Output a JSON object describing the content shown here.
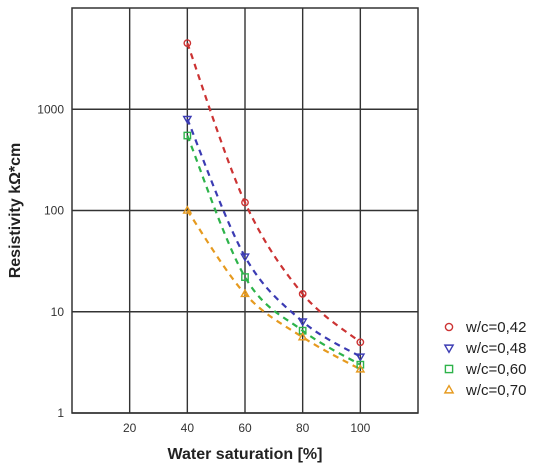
{
  "chart_data": {
    "type": "scatter",
    "title": "",
    "xlabel": "Water saturation [%]",
    "ylabel": "Resistivity kΩ*cm",
    "xlim": [
      0,
      120
    ],
    "ylim": [
      1,
      10000
    ],
    "y_scale": "log",
    "grid": true,
    "x_ticks": [
      "20",
      "40",
      "60",
      "80",
      "100"
    ],
    "x_tick_values": [
      20,
      40,
      60,
      80,
      100
    ],
    "y_ticks": [
      "1",
      "10",
      "100",
      "1000"
    ],
    "y_tick_values": [
      1,
      10,
      100,
      1000
    ],
    "legend_position": "bottom-right",
    "series": [
      {
        "name": "w/c=0,42",
        "color": "#cc3333",
        "marker": "circle",
        "x": [
          40,
          60,
          80,
          100
        ],
        "y": [
          4500,
          120,
          15,
          5
        ]
      },
      {
        "name": "w/c=0,48",
        "color": "#3b3bb3",
        "marker": "triangle-down",
        "x": [
          40,
          60,
          80,
          100
        ],
        "y": [
          800,
          35,
          8,
          3.6
        ]
      },
      {
        "name": "w/c=0,60",
        "color": "#2db34a",
        "marker": "square",
        "x": [
          40,
          60,
          80,
          100
        ],
        "y": [
          550,
          22,
          6.5,
          3
        ]
      },
      {
        "name": "w/c=0,70",
        "color": "#e69a1f",
        "marker": "triangle-up",
        "x": [
          40,
          60,
          80,
          100
        ],
        "y": [
          100,
          15,
          5.6,
          2.7
        ]
      }
    ]
  }
}
